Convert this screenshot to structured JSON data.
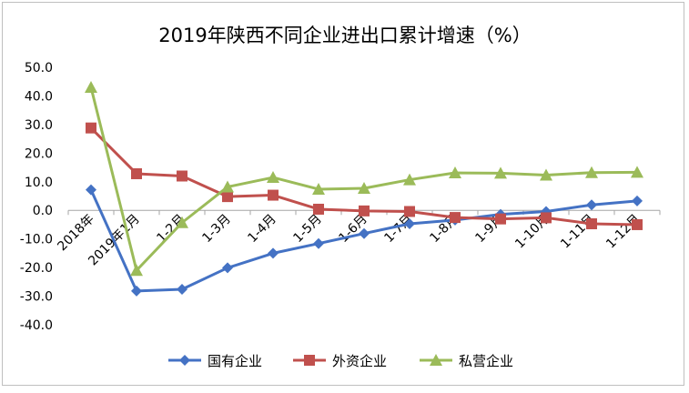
{
  "chart_data": {
    "type": "line",
    "title": "2019年陕西不同企业进出口累计增速（%）",
    "categories": [
      "2018年",
      "2019年1月",
      "1-2月",
      "1-3月",
      "1-4月",
      "1-5月",
      "1-6月",
      "1-7月",
      "1-8月",
      "1-9月",
      "1-10月",
      "1-11月",
      "1-12月"
    ],
    "ylim": [
      -40,
      50
    ],
    "yticks": [
      "50.0",
      "40.0",
      "30.0",
      "20.0",
      "10.0",
      "0.0",
      "-10.0",
      "-20.0",
      "-30.0",
      "-40.0"
    ],
    "grid": false,
    "legend_position": "bottom",
    "series": [
      {
        "name": "国有企业",
        "color": "#4472c4",
        "marker": "diamond",
        "values": [
          7.2,
          -28.2,
          -27.6,
          -20.1,
          -15.0,
          -11.6,
          -8.1,
          -4.7,
          -3.4,
          -1.4,
          -0.4,
          1.9,
          3.3
        ]
      },
      {
        "name": "外资企业",
        "color": "#c0504d",
        "marker": "square",
        "values": [
          28.8,
          12.8,
          12.0,
          4.8,
          5.3,
          0.4,
          -0.2,
          -0.4,
          -2.5,
          -3.0,
          -2.6,
          -4.7,
          -5.0
        ]
      },
      {
        "name": "私营企业",
        "color": "#9bbb59",
        "marker": "triangle",
        "values": [
          43.0,
          -21.0,
          -4.3,
          8.2,
          11.5,
          7.4,
          7.7,
          10.7,
          13.1,
          13.0,
          12.3,
          13.2,
          13.3
        ]
      }
    ]
  }
}
